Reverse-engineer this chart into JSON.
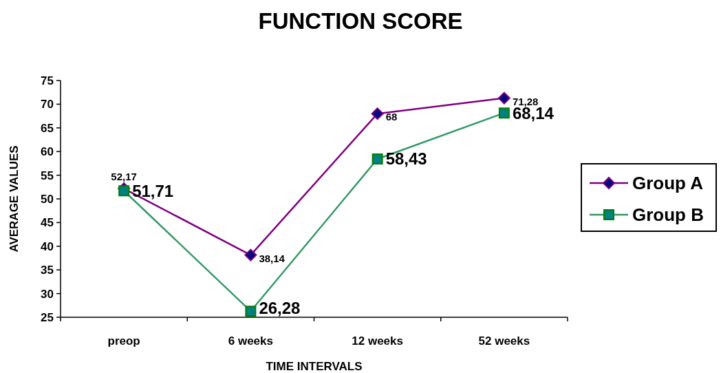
{
  "chart_data": {
    "type": "line",
    "title": "FUNCTION SCORE",
    "xlabel": "TIME INTERVALS",
    "ylabel": "AVERAGE VALUES",
    "categories": [
      "preop",
      "6 weeks",
      "12 weeks",
      "52 weeks"
    ],
    "series": [
      {
        "name": "Group A",
        "color": "#800080",
        "marker": "diamond",
        "values": [
          52.17,
          38.14,
          68,
          71.28
        ],
        "value_labels": [
          "52,17",
          "38,14",
          "68",
          "71,28"
        ]
      },
      {
        "name": "Group B",
        "color": "#339966",
        "marker": "square",
        "values": [
          51.71,
          26.28,
          58.43,
          68.14
        ],
        "value_labels": [
          "51,71",
          "26,28",
          "58,43",
          "68,14"
        ]
      }
    ],
    "ylim": [
      25,
      75
    ],
    "yticks": [
      25,
      30,
      35,
      40,
      45,
      50,
      55,
      60,
      65,
      70,
      75
    ],
    "grid": false,
    "legend": "right",
    "line_style": "solid"
  }
}
